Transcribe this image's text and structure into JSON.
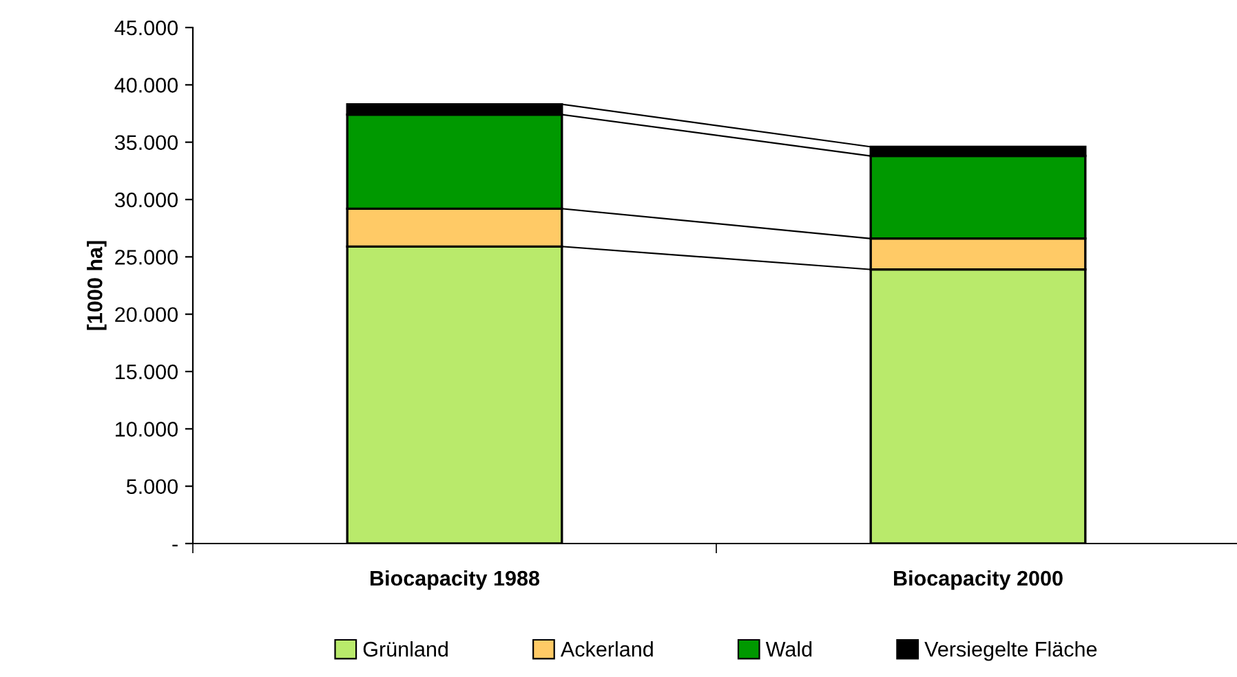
{
  "chart_data": {
    "type": "bar",
    "stacked": true,
    "ylabel": "[1000 ha]",
    "categories": [
      "Biocapacity 1988",
      "Biocapacity 2000"
    ],
    "series": [
      {
        "name": "Grünland",
        "color": "#b9ea6b",
        "values": [
          25900,
          23900
        ]
      },
      {
        "name": "Ackerland",
        "color": "#ffca66",
        "values": [
          3300,
          2700
        ]
      },
      {
        "name": "Wald",
        "color": "#009900",
        "values": [
          8200,
          7200
        ]
      },
      {
        "name": "Versiegelte Fläche",
        "color": "#000000",
        "values": [
          900,
          800
        ]
      }
    ],
    "ylim": [
      0,
      45000
    ],
    "yticks": [
      {
        "value": 0,
        "label": "-"
      },
      {
        "value": 5000,
        "label": "5.000"
      },
      {
        "value": 10000,
        "label": "10.000"
      },
      {
        "value": 15000,
        "label": "15.000"
      },
      {
        "value": 20000,
        "label": "20.000"
      },
      {
        "value": 25000,
        "label": "25.000"
      },
      {
        "value": 30000,
        "label": "30.000"
      },
      {
        "value": 35000,
        "label": "35.000"
      },
      {
        "value": 40000,
        "label": "40.000"
      },
      {
        "value": 45000,
        "label": "45.000"
      }
    ],
    "grid": false,
    "legend": "bottom"
  }
}
